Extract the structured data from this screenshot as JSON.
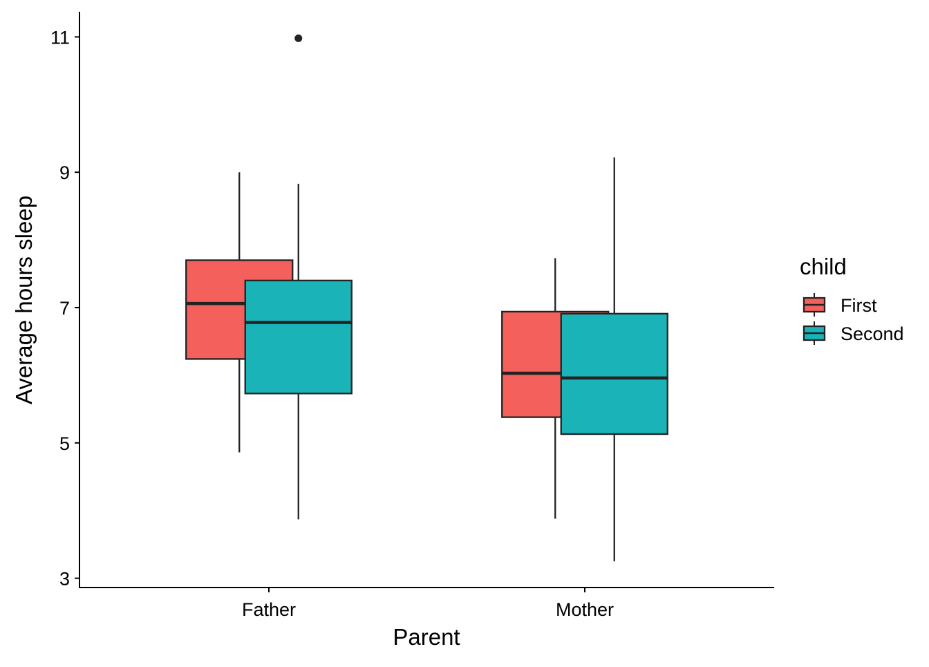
{
  "chart_data": {
    "type": "boxplot",
    "title": "",
    "xlabel": "Parent",
    "ylabel": "Average hours sleep",
    "categories": [
      "Father",
      "Mother"
    ],
    "ylim": [
      2.9,
      11.4
    ],
    "yticks": [
      3,
      5,
      7,
      9,
      11
    ],
    "grid": false,
    "legend": {
      "title": "child",
      "position": "right",
      "entries": [
        "First",
        "Second"
      ]
    },
    "colors": {
      "First": "#F4605B",
      "Second": "#19B3B8",
      "outline": "#222222"
    },
    "series": [
      {
        "name": "First",
        "boxes": [
          {
            "category": "Father",
            "whisker_low": 4.86,
            "q1": 6.24,
            "median": 7.06,
            "q3": 7.7,
            "whisker_high": 9.0,
            "outliers": []
          },
          {
            "category": "Mother",
            "whisker_low": 3.88,
            "q1": 5.38,
            "median": 6.03,
            "q3": 6.94,
            "whisker_high": 7.73,
            "outliers": []
          }
        ]
      },
      {
        "name": "Second",
        "boxes": [
          {
            "category": "Father",
            "whisker_low": 3.87,
            "q1": 5.73,
            "median": 6.78,
            "q3": 7.4,
            "whisker_high": 8.83,
            "outliers": [
              10.98
            ]
          },
          {
            "category": "Mother",
            "whisker_low": 3.25,
            "q1": 5.13,
            "median": 5.96,
            "q3": 6.91,
            "whisker_high": 9.22,
            "outliers": []
          }
        ]
      }
    ]
  }
}
